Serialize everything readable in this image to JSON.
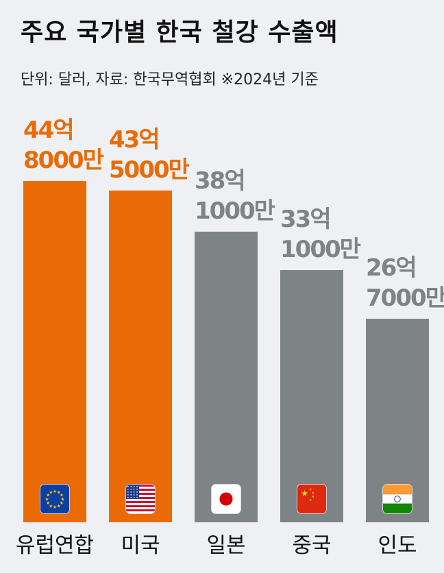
{
  "header": {
    "title": "주요 국가별 한국 철강 수출액",
    "subtitle": "단위: 달러, 자료: 한국무역협회 ※2024년 기준"
  },
  "colors": {
    "highlight": "#ea6b06",
    "neutral": "#7e8386",
    "background": "#eef0f4"
  },
  "chart_data": {
    "type": "bar",
    "title": "주요 국가별 한국 철강 수출액",
    "subtitle": "단위: 달러, 자료: 한국무역협회 ※2024년 기준",
    "categories": [
      "유럽연합",
      "미국",
      "일본",
      "중국",
      "인도"
    ],
    "values": [
      4480000000,
      4350000000,
      3810000000,
      3310000000,
      2670000000
    ],
    "value_labels": [
      [
        "44억",
        "8000만"
      ],
      [
        "43억",
        "5000만"
      ],
      [
        "38억",
        "1000만"
      ],
      [
        "33억",
        "1000만"
      ],
      [
        "26억",
        "7000만"
      ]
    ],
    "highlighted": [
      true,
      true,
      false,
      false,
      false
    ],
    "flag_icons": [
      "eu-flag-icon",
      "us-flag-icon",
      "japan-flag-icon",
      "china-flag-icon",
      "india-flag-icon"
    ],
    "ylim": [
      0,
      5000000000
    ],
    "grid": false,
    "legend": "none"
  }
}
